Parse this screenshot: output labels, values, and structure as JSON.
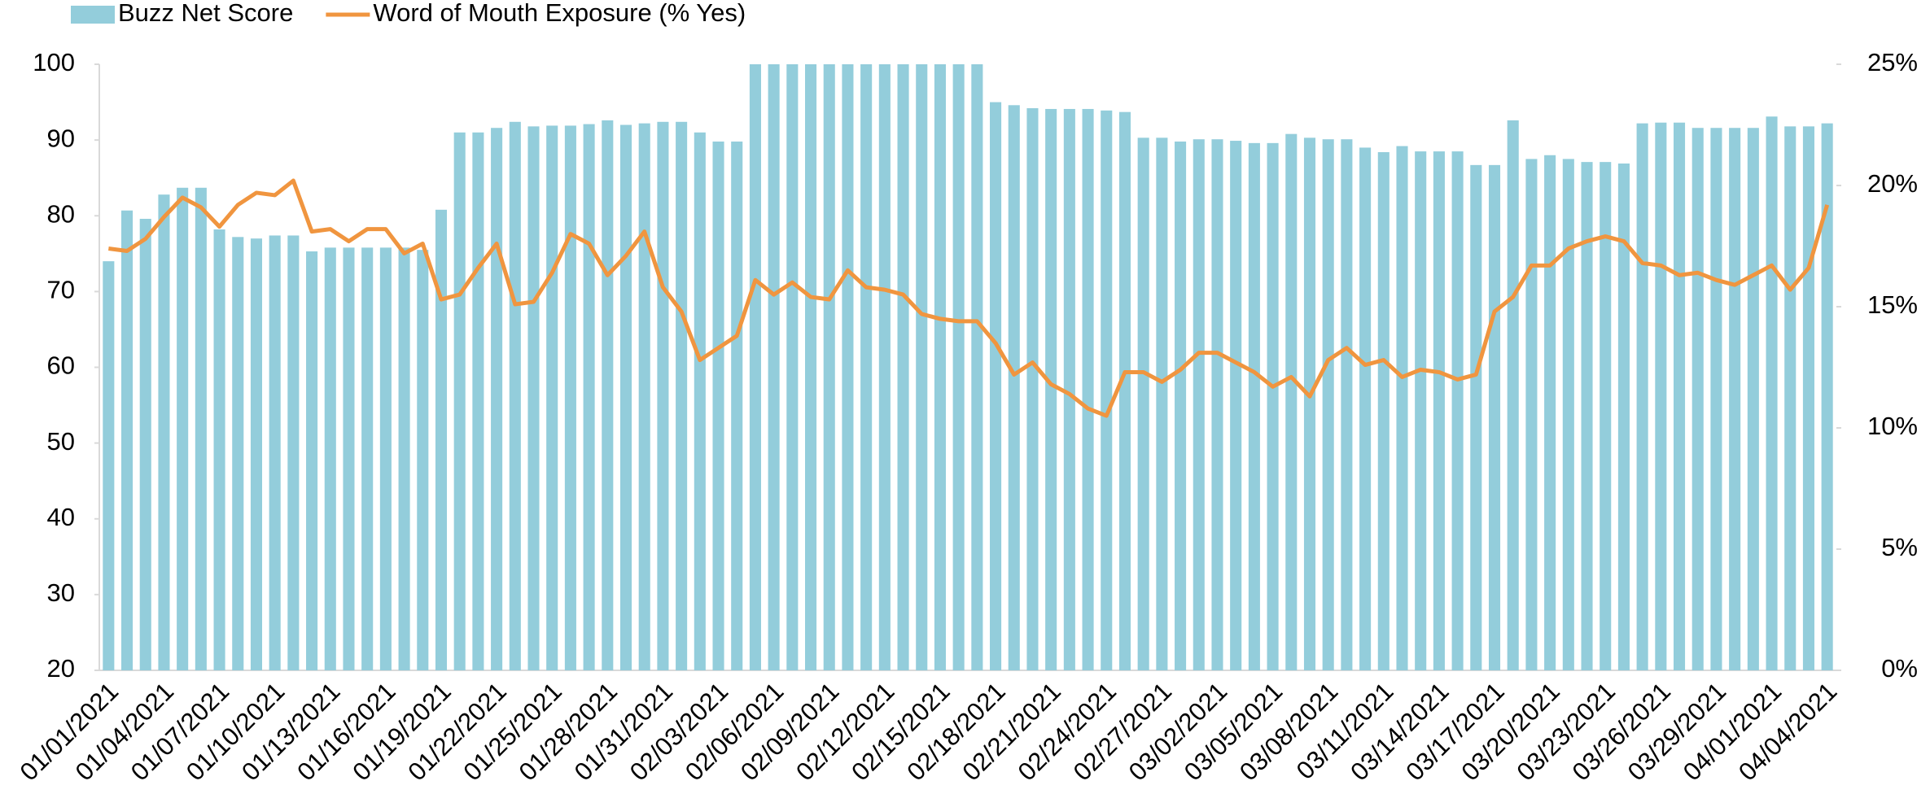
{
  "chart_data": {
    "type": "bar_line",
    "categories": [
      "01/01/2021",
      null,
      null,
      "01/04/2021",
      null,
      null,
      "01/07/2021",
      null,
      null,
      "01/10/2021",
      null,
      null,
      "01/13/2021",
      null,
      null,
      "01/16/2021",
      null,
      null,
      "01/19/2021",
      null,
      null,
      "01/22/2021",
      null,
      null,
      "01/25/2021",
      null,
      null,
      "01/28/2021",
      null,
      null,
      "01/31/2021",
      null,
      null,
      "02/03/2021",
      null,
      null,
      "02/06/2021",
      null,
      null,
      "02/09/2021",
      null,
      null,
      "02/12/2021",
      null,
      null,
      "02/15/2021",
      null,
      null,
      "02/18/2021",
      null,
      null,
      "02/21/2021",
      null,
      null,
      "02/24/2021",
      null,
      null,
      "02/27/2021",
      null,
      null,
      "03/02/2021",
      null,
      null,
      "03/05/2021",
      null,
      null,
      "03/08/2021",
      null,
      null,
      "03/11/2021",
      null,
      null,
      "03/14/2021",
      null,
      null,
      "03/17/2021",
      null,
      null,
      "03/20/2021",
      null,
      null,
      "03/23/2021",
      null,
      null,
      "03/26/2021",
      null,
      null,
      "03/29/2021",
      null,
      null,
      "04/01/2021",
      null,
      null,
      "04/04/2021"
    ],
    "series": [
      {
        "name": "Buzz Net Score",
        "type": "bar",
        "color": "#93cddb",
        "values": [
          74,
          80.7,
          79.6,
          82.8,
          83.7,
          83.7,
          78.2,
          77.2,
          77,
          77.4,
          77.4,
          75.3,
          75.8,
          75.8,
          75.8,
          75.8,
          75.8,
          75.5,
          80.8,
          91,
          91,
          91.6,
          92.4,
          91.8,
          91.9,
          91.9,
          92.1,
          92.6,
          92,
          92.2,
          92.4,
          92.4,
          91,
          89.8,
          89.8,
          100,
          100,
          100,
          100,
          100,
          100,
          100,
          100,
          100,
          100,
          100,
          100,
          100,
          95,
          94.6,
          94.2,
          94.1,
          94.1,
          94.1,
          93.9,
          93.7,
          90.3,
          90.3,
          89.8,
          90.1,
          90.1,
          89.9,
          89.6,
          89.6,
          90.8,
          90.3,
          90.1,
          90.1,
          89,
          88.4,
          89.2,
          88.5,
          88.5,
          88.5,
          86.7,
          86.7,
          92.6,
          87.5,
          88,
          87.5,
          87.1,
          87.1,
          86.9,
          92.2,
          92.3,
          92.3,
          91.6,
          91.6,
          91.6,
          91.6,
          93.1,
          91.8,
          91.8,
          92.2
        ]
      },
      {
        "name": "Word of Mouth Exposure (% Yes)",
        "type": "line",
        "axis": "y2",
        "color": "#f0953f",
        "values": [
          17.4,
          17.3,
          17.8,
          18.7,
          19.5,
          19.1,
          18.3,
          19.2,
          19.7,
          19.6,
          20.2,
          18.1,
          18.2,
          17.7,
          18.2,
          18.2,
          17.2,
          17.6,
          15.3,
          15.5,
          16.6,
          17.6,
          15.1,
          15.2,
          16.4,
          18,
          17.6,
          16.3,
          17.1,
          18.1,
          15.8,
          14.8,
          12.8,
          13.3,
          13.8,
          16.1,
          15.5,
          16,
          15.4,
          15.3,
          16.5,
          15.8,
          15.7,
          15.5,
          14.7,
          14.5,
          14.4,
          14.4,
          13.5,
          12.2,
          12.7,
          11.8,
          11.4,
          10.8,
          10.5,
          12.3,
          12.3,
          11.9,
          12.4,
          13.1,
          13.1,
          12.7,
          12.3,
          11.7,
          12.1,
          11.3,
          12.8,
          13.3,
          12.6,
          12.8,
          12.1,
          12.4,
          12.3,
          12,
          12.2,
          14.8,
          15.4,
          16.7,
          16.7,
          17.4,
          17.7,
          17.9,
          17.7,
          16.8,
          16.7,
          16.3,
          16.4,
          16.1,
          15.9,
          16.3,
          16.7,
          15.7,
          16.6,
          19.2
        ]
      }
    ],
    "ylim": [
      20,
      100
    ],
    "yticks": [
      20,
      30,
      40,
      50,
      60,
      70,
      80,
      90,
      100
    ],
    "y2lim": [
      0,
      25
    ],
    "y2ticks": [
      {
        "value": 0,
        "label": "0%"
      },
      {
        "value": 5,
        "label": "5%"
      },
      {
        "value": 10,
        "label": "10%"
      },
      {
        "value": 15,
        "label": "15%"
      },
      {
        "value": 20,
        "label": "20%"
      },
      {
        "value": 25,
        "label": "25%"
      }
    ],
    "legend": "top-left"
  }
}
